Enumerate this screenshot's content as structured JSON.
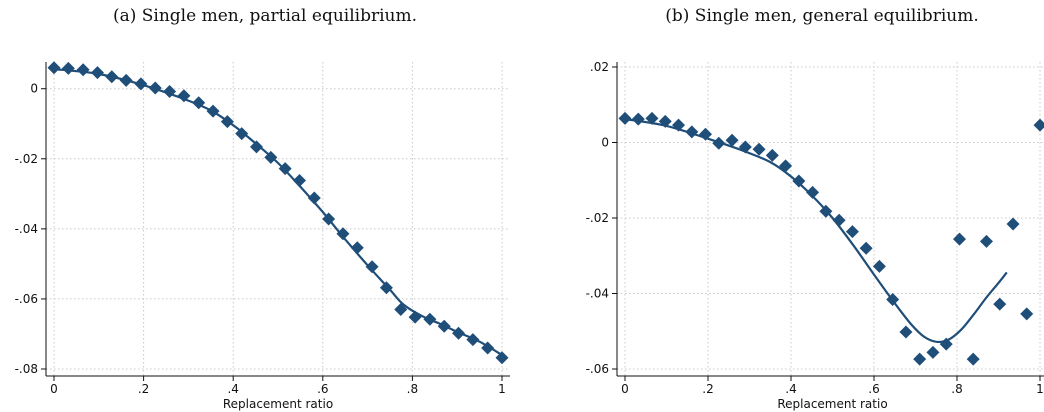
{
  "chart_data": [
    {
      "type": "scatter",
      "title": "(a) Single men, partial equilibrium.",
      "xlabel": "Replacement ratio",
      "ylabel": "",
      "xlim": [
        0,
        1
      ],
      "ylim": [
        -0.08,
        0.007
      ],
      "xticks": [
        0,
        0.2,
        0.4,
        0.6,
        0.8,
        1
      ],
      "xtick_labels": [
        "0",
        ".2",
        ".4",
        ".6",
        ".8",
        "1"
      ],
      "yticks": [
        0,
        -0.02,
        -0.04,
        -0.06,
        -0.08
      ],
      "ytick_labels": [
        "0",
        "-.02",
        "-.04",
        "-.06",
        "-.08"
      ],
      "grid": true,
      "marker_color": "#1f4e79",
      "line_color": "#1f4e79",
      "points": [
        [
          0.0,
          0.006
        ],
        [
          0.032,
          0.0058
        ],
        [
          0.065,
          0.0054
        ],
        [
          0.097,
          0.0046
        ],
        [
          0.129,
          0.0034
        ],
        [
          0.161,
          0.0024
        ],
        [
          0.194,
          0.0014
        ],
        [
          0.226,
          0.0002
        ],
        [
          0.258,
          -0.0008
        ],
        [
          0.29,
          -0.002
        ],
        [
          0.323,
          -0.004
        ],
        [
          0.355,
          -0.0064
        ],
        [
          0.387,
          -0.0094
        ],
        [
          0.419,
          -0.0128
        ],
        [
          0.452,
          -0.0166
        ],
        [
          0.484,
          -0.0196
        ],
        [
          0.516,
          -0.0228
        ],
        [
          0.548,
          -0.0262
        ],
        [
          0.581,
          -0.0312
        ],
        [
          0.613,
          -0.0372
        ],
        [
          0.645,
          -0.0414
        ],
        [
          0.677,
          -0.0454
        ],
        [
          0.71,
          -0.0508
        ],
        [
          0.742,
          -0.0568
        ],
        [
          0.774,
          -0.063
        ],
        [
          0.806,
          -0.0652
        ],
        [
          0.839,
          -0.0658
        ],
        [
          0.871,
          -0.0678
        ],
        [
          0.903,
          -0.0698
        ],
        [
          0.935,
          -0.0716
        ],
        [
          0.968,
          -0.074
        ],
        [
          1.0,
          -0.0768
        ]
      ],
      "fit": [
        [
          0.0,
          0.0056
        ],
        [
          0.1,
          0.0042
        ],
        [
          0.2,
          0.001
        ],
        [
          0.3,
          -0.0034
        ],
        [
          0.35,
          -0.0062
        ],
        [
          0.4,
          -0.0104
        ],
        [
          0.45,
          -0.0156
        ],
        [
          0.5,
          -0.0212
        ],
        [
          0.55,
          -0.028
        ],
        [
          0.6,
          -0.0352
        ],
        [
          0.65,
          -0.043
        ],
        [
          0.7,
          -0.0504
        ],
        [
          0.75,
          -0.0574
        ],
        [
          0.78,
          -0.0616
        ],
        [
          0.82,
          -0.0648
        ],
        [
          0.86,
          -0.067
        ],
        [
          0.9,
          -0.0694
        ],
        [
          0.95,
          -0.0722
        ],
        [
          1.0,
          -0.076
        ]
      ]
    },
    {
      "type": "scatter",
      "title": "(b) Single men, general equilibrium.",
      "xlabel": "Replacement ratio",
      "ylabel": "",
      "xlim": [
        0,
        1
      ],
      "ylim": [
        -0.061,
        0.022
      ],
      "xticks": [
        0,
        0.2,
        0.4,
        0.6,
        0.8,
        1
      ],
      "xtick_labels": [
        "0",
        ".2",
        ".4",
        ".6",
        ".8",
        "1"
      ],
      "yticks": [
        0.02,
        0,
        -0.02,
        -0.04,
        -0.06
      ],
      "ytick_labels": [
        ".02",
        "0",
        "-.02",
        "-.04",
        "-.06"
      ],
      "grid": true,
      "marker_color": "#1f4e79",
      "line_color": "#1f4e79",
      "points": [
        [
          0.0,
          0.0064
        ],
        [
          0.032,
          0.0062
        ],
        [
          0.065,
          0.0064
        ],
        [
          0.097,
          0.0056
        ],
        [
          0.129,
          0.0046
        ],
        [
          0.161,
          0.0028
        ],
        [
          0.194,
          0.0022
        ],
        [
          0.226,
          -0.0002
        ],
        [
          0.258,
          0.0006
        ],
        [
          0.29,
          -0.0012
        ],
        [
          0.323,
          -0.0018
        ],
        [
          0.355,
          -0.0034
        ],
        [
          0.387,
          -0.0062
        ],
        [
          0.419,
          -0.0102
        ],
        [
          0.452,
          -0.0132
        ],
        [
          0.484,
          -0.0182
        ],
        [
          0.516,
          -0.0206
        ],
        [
          0.548,
          -0.0236
        ],
        [
          0.581,
          -0.028
        ],
        [
          0.613,
          -0.0328
        ],
        [
          0.645,
          -0.0416
        ],
        [
          0.677,
          -0.0502
        ],
        [
          0.71,
          -0.0574
        ],
        [
          0.742,
          -0.0556
        ],
        [
          0.774,
          -0.0534
        ],
        [
          0.806,
          -0.0256
        ],
        [
          0.839,
          -0.0574
        ],
        [
          0.871,
          -0.0262
        ],
        [
          0.903,
          -0.0428
        ],
        [
          0.935,
          -0.0216
        ],
        [
          0.968,
          -0.0454
        ],
        [
          1.0,
          0.0046
        ]
      ],
      "fit": [
        [
          0.0,
          0.0062
        ],
        [
          0.1,
          0.0044
        ],
        [
          0.2,
          0.001
        ],
        [
          0.28,
          -0.002
        ],
        [
          0.35,
          -0.0052
        ],
        [
          0.4,
          -0.009
        ],
        [
          0.45,
          -0.014
        ],
        [
          0.5,
          -0.02
        ],
        [
          0.55,
          -0.0272
        ],
        [
          0.6,
          -0.035
        ],
        [
          0.65,
          -0.0426
        ],
        [
          0.69,
          -0.0482
        ],
        [
          0.72,
          -0.0514
        ],
        [
          0.75,
          -0.0528
        ],
        [
          0.78,
          -0.0522
        ],
        [
          0.81,
          -0.0496
        ],
        [
          0.84,
          -0.0456
        ],
        [
          0.87,
          -0.0412
        ],
        [
          0.9,
          -0.0372
        ],
        [
          0.92,
          -0.0344
        ]
      ]
    }
  ]
}
